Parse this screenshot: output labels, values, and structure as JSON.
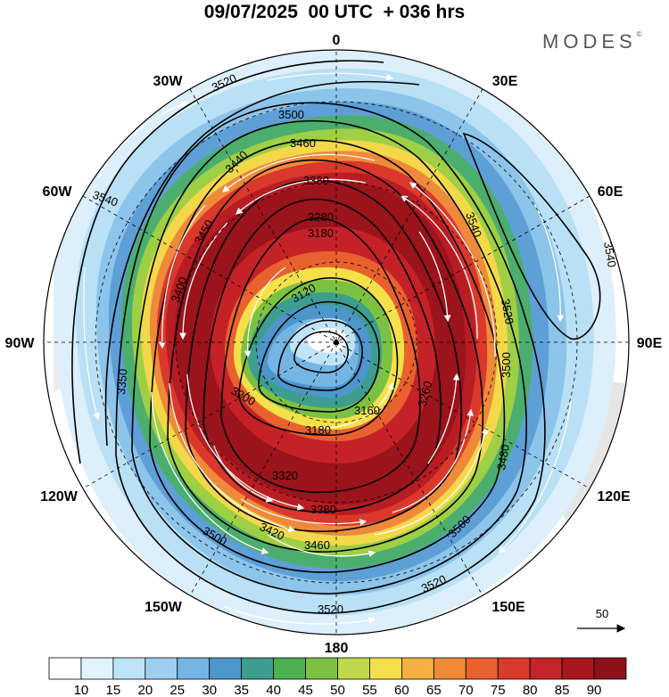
{
  "header": {
    "title": "09/07/2025  00 UTC  + 036 hrs",
    "brand": "MODES",
    "brand_mark": "©"
  },
  "map": {
    "projection": "south-polar-stereographic",
    "longitude_labels": {
      "top": "0",
      "top_right": "30E",
      "upper_right": "60E",
      "right": "90E",
      "lower_right": "120E",
      "bottom_right": "150E",
      "bottom": "180",
      "bottom_left": "150W",
      "lower_left": "120W",
      "left": "90W",
      "upper_left": "60W",
      "top_left": "30W"
    },
    "contour_labels": [
      "3520",
      "3500",
      "3460",
      "3380",
      "3280",
      "3180",
      "3120",
      "3450",
      "3400",
      "3440",
      "3540",
      "3540",
      "3540",
      "3520",
      "3500",
      "3480",
      "3500",
      "3520",
      "3520",
      "3500",
      "3460",
      "3380",
      "3420",
      "3320",
      "3200",
      "3180",
      "3160",
      "3260",
      "3350"
    ],
    "wind_reference": {
      "label": "50"
    }
  },
  "colorbar": {
    "labels": [
      "10",
      "15",
      "20",
      "25",
      "30",
      "35",
      "40",
      "45",
      "50",
      "55",
      "60",
      "65",
      "70",
      "75",
      "80",
      "85",
      "90"
    ],
    "colors": [
      "#ffffff",
      "#e1f3fc",
      "#c0e4f7",
      "#9ecff0",
      "#74b5e3",
      "#4d96cc",
      "#3d9e8f",
      "#4caf50",
      "#7cc242",
      "#bfd84a",
      "#f5e04a",
      "#f5b041",
      "#f08a3a",
      "#e8612e",
      "#d93a2b",
      "#c4242a",
      "#a8161e",
      "#8c1118"
    ]
  }
}
